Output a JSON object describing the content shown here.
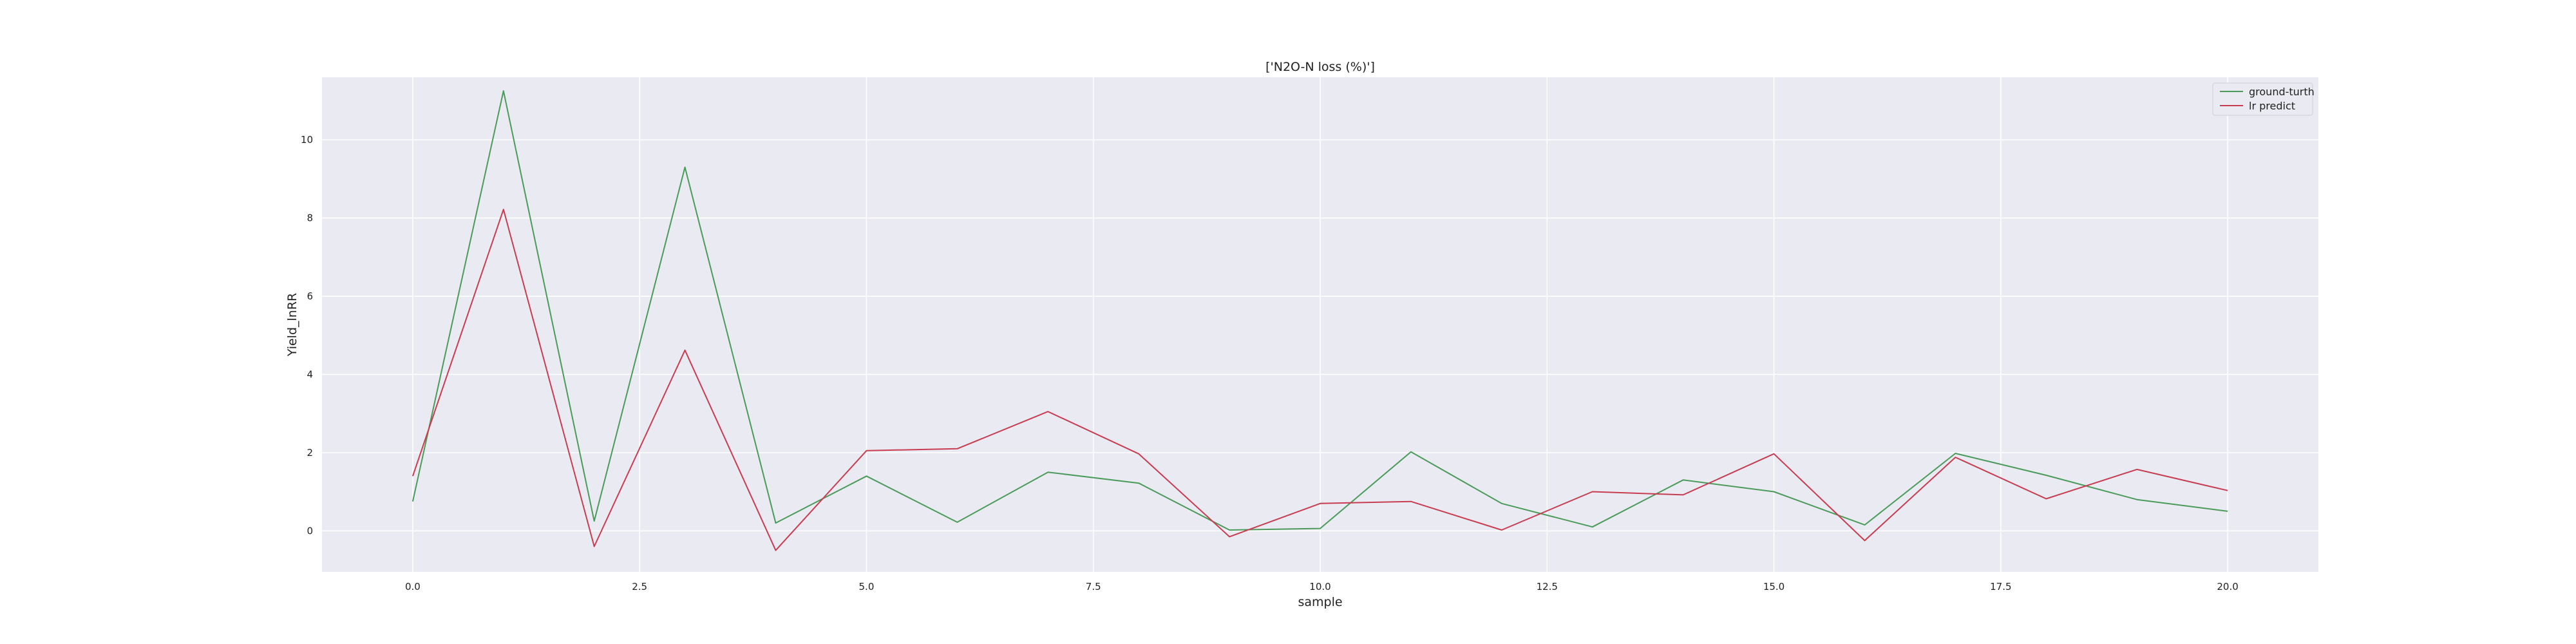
{
  "chart_data": {
    "type": "line",
    "title": "['N2O-N loss (%)']",
    "xlabel": "sample",
    "ylabel": "Yield_lnRR",
    "x": [
      0,
      1,
      2,
      3,
      4,
      5,
      6,
      7,
      8,
      9,
      10,
      11,
      12,
      13,
      14,
      15,
      16,
      17,
      18,
      19,
      20
    ],
    "xlim": [
      -1,
      21
    ],
    "ylim": [
      -1.05,
      11.6
    ],
    "xticks": [
      0.0,
      2.5,
      5.0,
      7.5,
      10.0,
      12.5,
      15.0,
      17.5,
      20.0
    ],
    "xtick_labels": [
      "0.0",
      "2.5",
      "5.0",
      "7.5",
      "10.0",
      "12.5",
      "15.0",
      "17.5",
      "20.0"
    ],
    "yticks": [
      0,
      2,
      4,
      6,
      8,
      10
    ],
    "ytick_labels": [
      "0",
      "2",
      "4",
      "6",
      "8",
      "10"
    ],
    "grid": true,
    "legend_position": "top-right",
    "series": [
      {
        "name": "ground-turth",
        "color": "#4a9a5a",
        "values": [
          0.75,
          11.25,
          0.25,
          9.3,
          0.2,
          1.4,
          0.22,
          1.5,
          1.22,
          0.02,
          0.06,
          2.02,
          0.7,
          0.1,
          1.3,
          1.0,
          0.15,
          1.98,
          1.42,
          0.8,
          0.5
        ]
      },
      {
        "name": "lr predict",
        "color": "#c83c50",
        "values": [
          1.4,
          8.22,
          -0.4,
          4.62,
          -0.5,
          2.05,
          2.1,
          3.05,
          1.97,
          -0.15,
          0.7,
          0.75,
          0.02,
          1.0,
          0.92,
          1.97,
          -0.25,
          1.88,
          0.82,
          1.57,
          1.03
        ]
      }
    ]
  }
}
